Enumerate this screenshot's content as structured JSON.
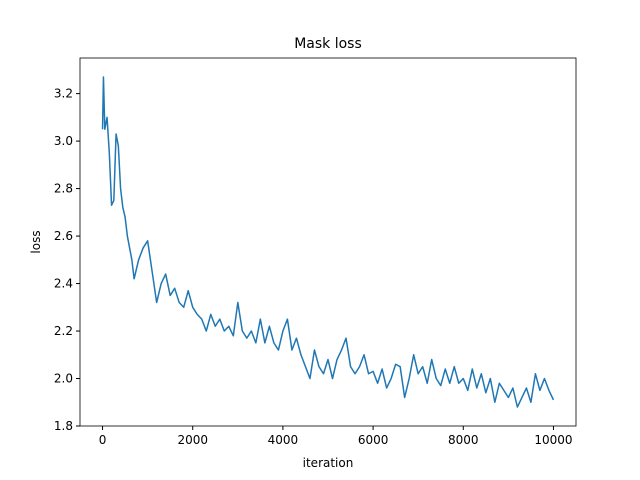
{
  "chart_data": {
    "type": "line",
    "title": "Mask loss",
    "x_label": "iteration",
    "y_label": "loss",
    "x": [
      0,
      20,
      50,
      100,
      150,
      200,
      250,
      300,
      350,
      400,
      450,
      500,
      550,
      600,
      650,
      700,
      750,
      800,
      900,
      1000,
      1100,
      1200,
      1300,
      1400,
      1500,
      1600,
      1700,
      1800,
      1900,
      2000,
      2100,
      2200,
      2300,
      2400,
      2500,
      2600,
      2700,
      2800,
      2900,
      3000,
      3100,
      3200,
      3300,
      3400,
      3500,
      3600,
      3700,
      3800,
      3900,
      4000,
      4100,
      4200,
      4300,
      4400,
      4500,
      4600,
      4700,
      4800,
      4900,
      5000,
      5100,
      5200,
      5300,
      5400,
      5500,
      5600,
      5700,
      5800,
      5900,
      6000,
      6100,
      6200,
      6300,
      6400,
      6500,
      6600,
      6700,
      6800,
      6900,
      7000,
      7100,
      7200,
      7300,
      7400,
      7500,
      7600,
      7700,
      7800,
      7900,
      8000,
      8100,
      8200,
      8300,
      8400,
      8500,
      8600,
      8700,
      8800,
      8900,
      9000,
      9100,
      9200,
      9300,
      9400,
      9500,
      9600,
      9700,
      9800,
      9900,
      10000
    ],
    "series": [
      {
        "name": "loss",
        "color": "#1f77b4",
        "values": [
          3.05,
          3.27,
          3.05,
          3.1,
          2.95,
          2.73,
          2.75,
          3.03,
          2.98,
          2.8,
          2.72,
          2.68,
          2.6,
          2.55,
          2.5,
          2.42,
          2.46,
          2.5,
          2.55,
          2.58,
          2.45,
          2.32,
          2.4,
          2.44,
          2.35,
          2.38,
          2.32,
          2.3,
          2.37,
          2.3,
          2.27,
          2.25,
          2.2,
          2.27,
          2.22,
          2.25,
          2.2,
          2.22,
          2.18,
          2.32,
          2.2,
          2.17,
          2.2,
          2.15,
          2.25,
          2.15,
          2.22,
          2.15,
          2.12,
          2.2,
          2.25,
          2.12,
          2.17,
          2.1,
          2.05,
          2.0,
          2.12,
          2.05,
          2.02,
          2.08,
          2.0,
          2.08,
          2.12,
          2.17,
          2.05,
          2.02,
          2.05,
          2.1,
          2.02,
          2.03,
          1.98,
          2.04,
          1.96,
          2.0,
          2.06,
          2.05,
          1.92,
          2.0,
          2.1,
          2.02,
          2.05,
          1.98,
          2.08,
          2.0,
          1.97,
          2.04,
          1.98,
          2.05,
          1.98,
          2.0,
          1.95,
          2.04,
          1.96,
          2.02,
          1.94,
          2.0,
          1.9,
          1.98,
          1.95,
          1.92,
          1.96,
          1.88,
          1.92,
          1.96,
          1.9,
          2.02,
          1.95,
          2.0,
          1.95,
          1.91
        ]
      }
    ],
    "xlim": [
      -500,
      10500
    ],
    "xticks": [
      0,
      2000,
      4000,
      6000,
      8000,
      10000
    ],
    "ylim": [
      1.8,
      3.35
    ],
    "yticks": [
      {
        "value": 1.8,
        "label": "1.8"
      },
      {
        "value": 2.0,
        "label": "2.0"
      },
      {
        "value": 2.2,
        "label": "2.2"
      },
      {
        "value": 2.4,
        "label": "2.4"
      },
      {
        "value": 2.6,
        "label": "2.6"
      },
      {
        "value": 2.8,
        "label": "2.8"
      },
      {
        "value": 3.0,
        "label": "3.0"
      },
      {
        "value": 3.2,
        "label": "3.2"
      }
    ]
  }
}
